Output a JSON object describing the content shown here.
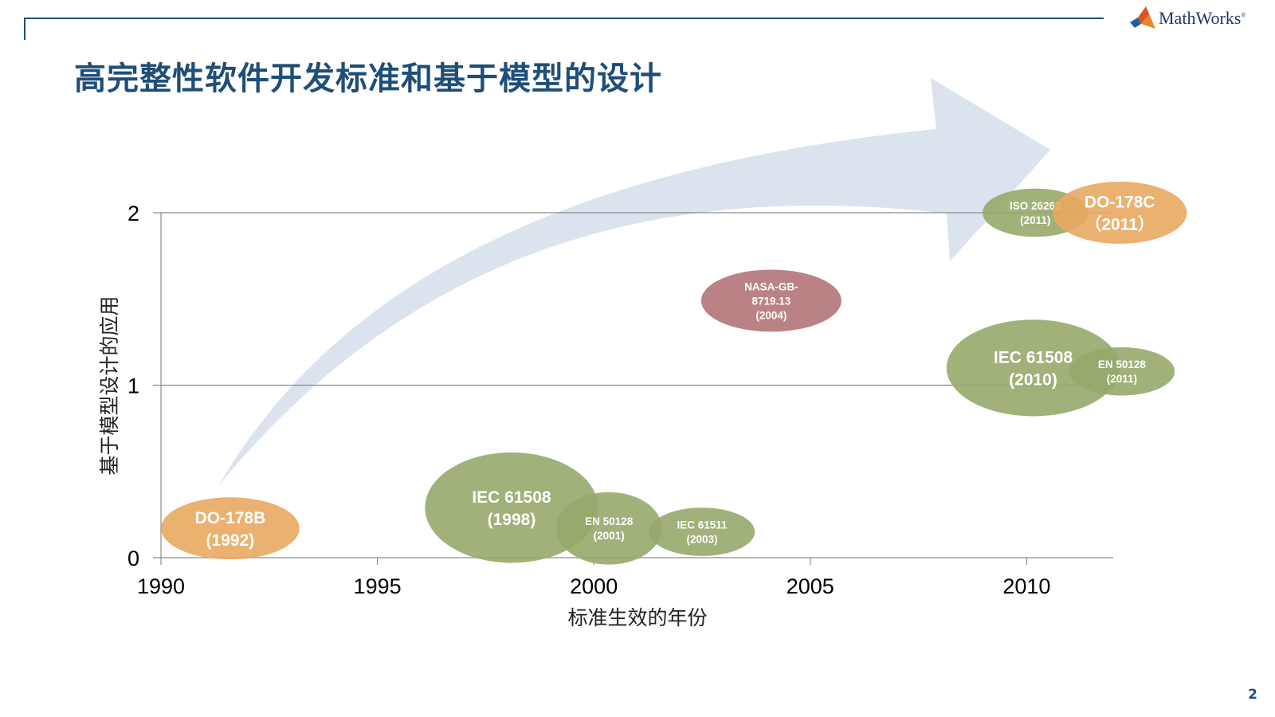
{
  "slide": {
    "title": "高完整性软件开发标准和基于模型的设计",
    "page_number": "2",
    "logo_text": "MathWorks",
    "logo_mark": "®"
  },
  "chart_data": {
    "type": "bubble",
    "xlabel": "标准生效的年份",
    "ylabel": "基于模型设计的应用",
    "xlim": [
      1990,
      2012
    ],
    "ylim": [
      0,
      2
    ],
    "xticks": [
      1990,
      1995,
      2000,
      2005,
      2010
    ],
    "yticks": [
      0,
      1,
      2
    ],
    "grid": "horizontal",
    "colors": {
      "orange": "#e8a862",
      "green": "#96a86a",
      "red": "#b47478",
      "arrow": "#dbe3ef"
    },
    "bubbles": [
      {
        "label": [
          "DO-178B",
          "(1992)"
        ],
        "x": 1991.6,
        "y": 0.17,
        "rx": 1.6,
        "ry": 0.18,
        "color": "orange",
        "size": "large"
      },
      {
        "label": [
          "IEC 61508",
          "(1998)"
        ],
        "x": 1998.1,
        "y": 0.29,
        "rx": 2.0,
        "ry": 0.32,
        "color": "green",
        "size": "large"
      },
      {
        "label": [
          "EN 50128",
          "(2001)"
        ],
        "x": 2000.35,
        "y": 0.17,
        "rx": 1.22,
        "ry": 0.21,
        "color": "green",
        "size": "small"
      },
      {
        "label": [
          "IEC 61511",
          "(2003)"
        ],
        "x": 2002.5,
        "y": 0.15,
        "rx": 1.22,
        "ry": 0.14,
        "color": "green",
        "size": "small"
      },
      {
        "label": [
          "NASA-GB-",
          "8719.13",
          "(2004)"
        ],
        "x": 2004.1,
        "y": 1.49,
        "rx": 1.62,
        "ry": 0.18,
        "color": "red",
        "size": "small"
      },
      {
        "label": [
          "IEC 61508",
          "(2010)"
        ],
        "x": 2010.15,
        "y": 1.1,
        "rx": 2.0,
        "ry": 0.28,
        "color": "green",
        "size": "large"
      },
      {
        "label": [
          "EN 50128",
          "(2011)"
        ],
        "x": 2012.2,
        "y": 1.08,
        "rx": 1.22,
        "ry": 0.14,
        "color": "green",
        "size": "small"
      },
      {
        "label": [
          "ISO 26262",
          "(2011)"
        ],
        "x": 2010.2,
        "y": 2.0,
        "rx": 1.22,
        "ry": 0.14,
        "color": "green",
        "size": "small"
      },
      {
        "label": [
          "DO-178C",
          "（2011）"
        ],
        "x": 2012.15,
        "y": 2.0,
        "rx": 1.55,
        "ry": 0.18,
        "color": "orange",
        "size": "large"
      }
    ]
  }
}
